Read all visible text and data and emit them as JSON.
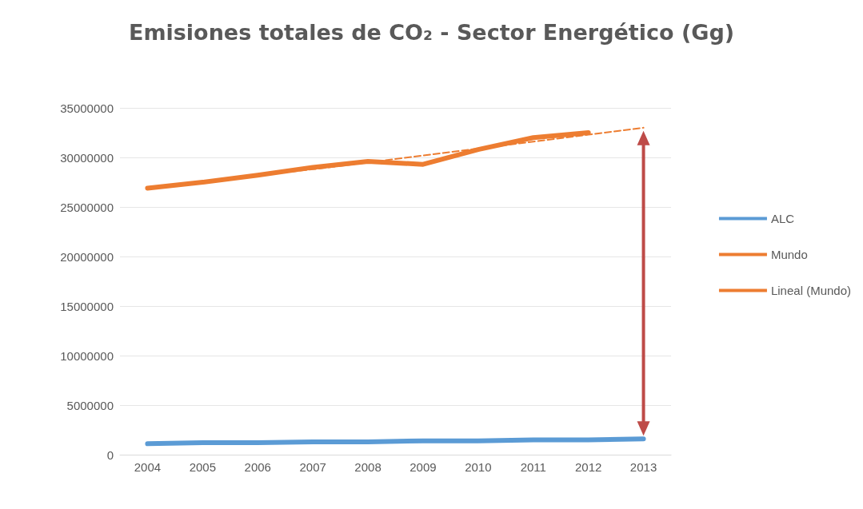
{
  "chart_data": {
    "type": "line",
    "title": "Emisiones totales de CO₂ - Sector Energético (Gg)",
    "categories": [
      "2004",
      "2005",
      "2006",
      "2007",
      "2008",
      "2009",
      "2010",
      "2011",
      "2012",
      "2013"
    ],
    "series": [
      {
        "name": "ALC",
        "color": "#5b9bd5",
        "values": [
          1100000,
          1200000,
          1200000,
          1300000,
          1300000,
          1400000,
          1400000,
          1500000,
          1500000,
          1600000
        ]
      },
      {
        "name": "Mundo",
        "color": "#ed7d31",
        "values": [
          26900000,
          27500000,
          28200000,
          29000000,
          29600000,
          29300000,
          30800000,
          32000000,
          32500000,
          null
        ]
      },
      {
        "name": "Lineal (Mundo)",
        "color": "#ed7d31",
        "line_style": "dashed",
        "values": [
          26800000,
          27500000,
          28200000,
          28800000,
          29500000,
          30200000,
          30900000,
          31600000,
          32300000,
          33000000
        ]
      }
    ],
    "ylim": [
      0,
      35000000
    ],
    "yticks": [
      0,
      5000000,
      10000000,
      15000000,
      20000000,
      25000000,
      30000000,
      35000000
    ],
    "grid": "y",
    "legend": "right",
    "marker": "none"
  }
}
